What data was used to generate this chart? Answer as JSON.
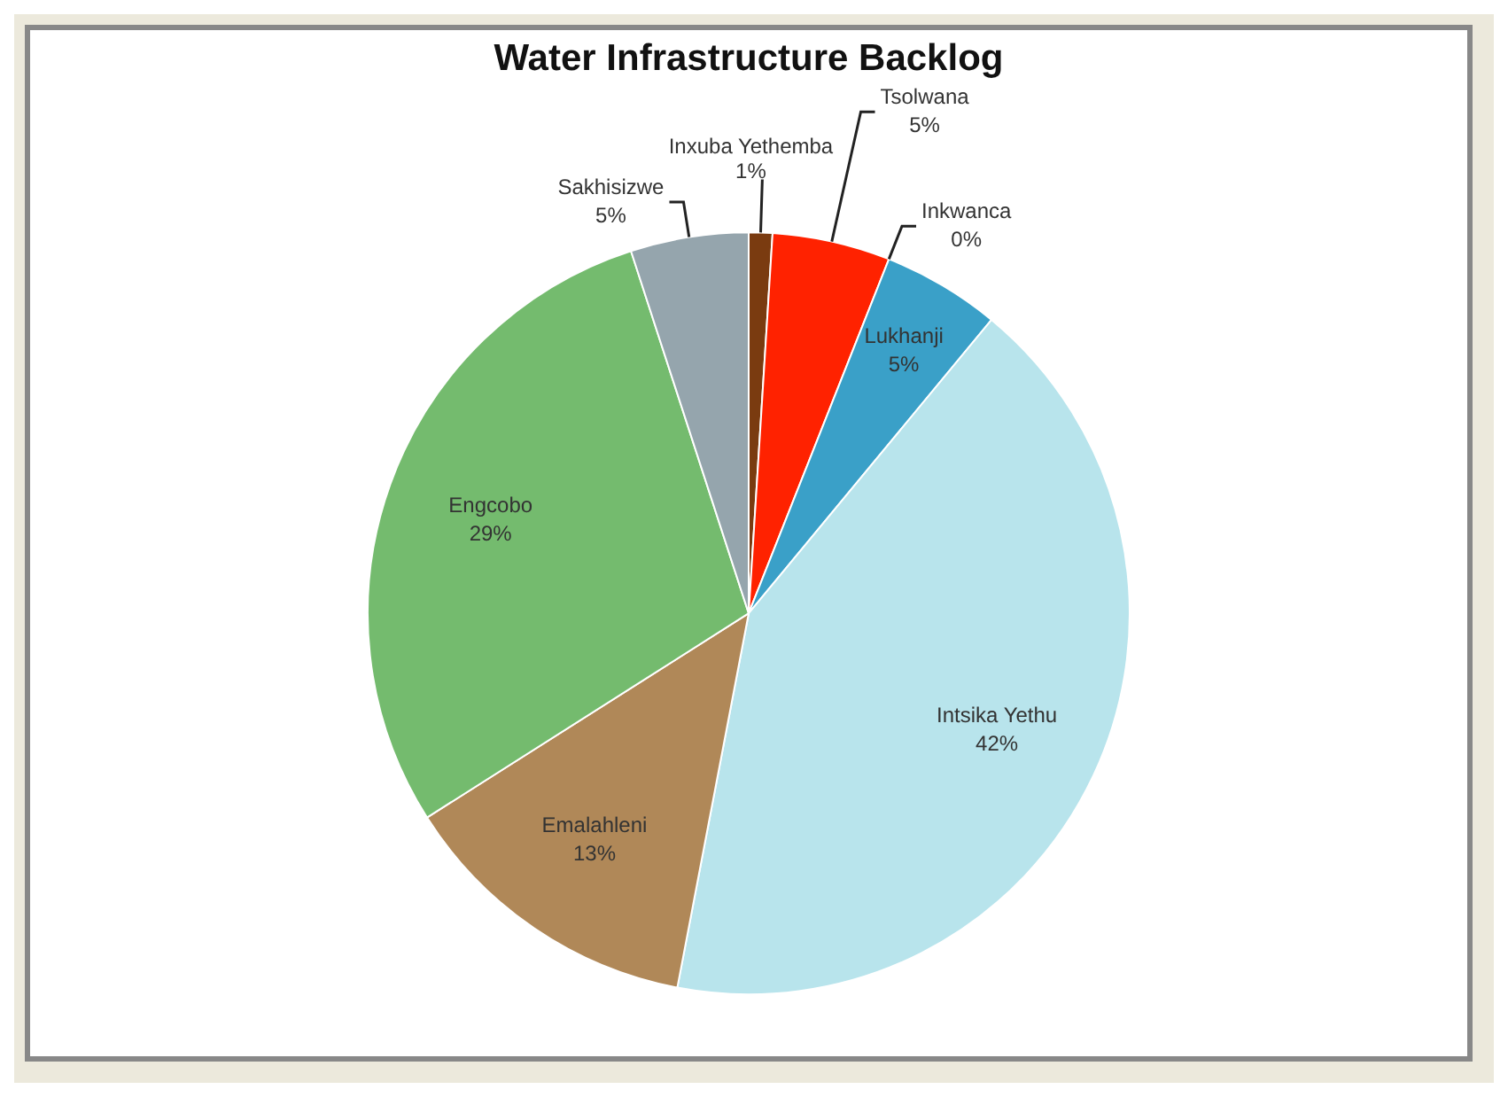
{
  "chart_data": {
    "type": "pie",
    "title": "Water Infrastructure Backlog",
    "categories": [
      "Inxuba Yethemba",
      "Tsolwana",
      "Inkwanca",
      "Lukhanji",
      "Intsika Yethu",
      "Emalahleni",
      "Engcobo",
      "Sakhisizwe"
    ],
    "values": [
      1,
      5,
      0,
      5,
      42,
      13,
      29,
      5
    ],
    "value_labels": [
      "1%",
      "5%",
      "0%",
      "5%",
      "42%",
      "13%",
      "29%",
      "5%"
    ],
    "colors": [
      "#7a3b10",
      "#ff2200",
      "#2e6b2e",
      "#3aa0c8",
      "#b8e4ec",
      "#b08858",
      "#74bb6e",
      "#95a5ad"
    ],
    "legend": false
  }
}
